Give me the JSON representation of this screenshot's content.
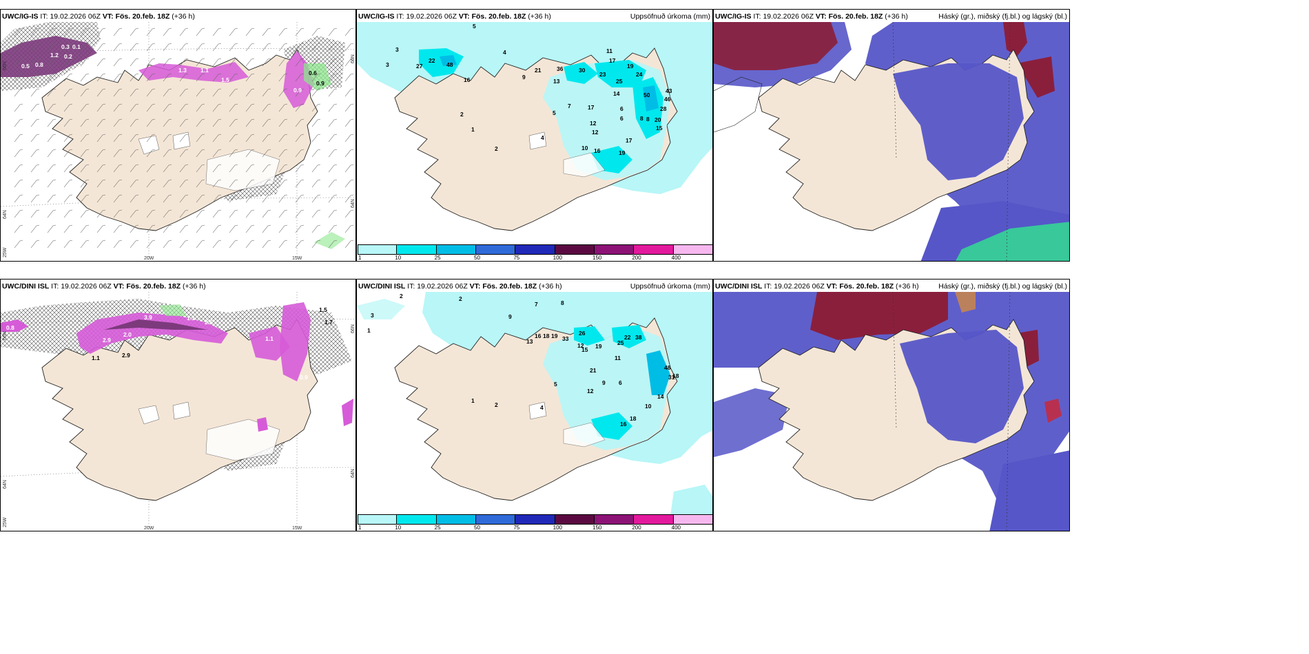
{
  "panels": {
    "p1": {
      "model": "UWC/IG-IS",
      "it_label": "IT:",
      "it_value": "19.02.2026 06Z",
      "vt_label": "VT:",
      "vt_value": "Fös. 20.feb. 18Z",
      "lead": "(+36 h)",
      "right_title": "",
      "values": [
        "0.3",
        "0.1",
        "1.2",
        "0.2",
        "0.5",
        "0.8",
        "1.3",
        "1.1",
        "0.9",
        "0.6",
        "0.9",
        "1.5"
      ],
      "coords": [
        "66N",
        "64N",
        "25W",
        "20W",
        "15W",
        "66N",
        "64N"
      ]
    },
    "p2": {
      "model": "UWC/IG-IS",
      "it_label": "IT:",
      "it_value": "19.02.2026 06Z",
      "vt_label": "VT:",
      "vt_value": "Fös. 20.feb. 18Z",
      "lead": "(+36 h)",
      "right_title": "Uppsöfnuð úrkoma (mm)",
      "values": [
        "5",
        "4",
        "3",
        "3",
        "27",
        "22",
        "48",
        "16",
        "2",
        "21",
        "36",
        "30",
        "23",
        "25",
        "24",
        "19",
        "17",
        "11",
        "13",
        "14",
        "17",
        "43",
        "50",
        "46",
        "28",
        "20",
        "15",
        "12",
        "17",
        "19",
        "16",
        "10",
        "8",
        "7",
        "6",
        "5",
        "4",
        "2",
        "1",
        "12",
        "9",
        "6",
        "8"
      ]
    },
    "p3": {
      "model": "UWC/IG-IS",
      "it_label": "IT:",
      "it_value": "19.02.2026 06Z",
      "vt_label": "VT:",
      "vt_value": "Fös. 20.feb. 18Z",
      "lead": "(+36 h)",
      "right_title": "Háský (gr.), miðský (fj.bl.) og lágský (bl.)"
    },
    "p4": {
      "model": "UWC/DINI ISL",
      "it_label": "IT:",
      "it_value": "19.02.2026 06Z",
      "vt_label": "VT:",
      "vt_value": "Fös. 20.feb. 18Z",
      "lead": "(+36 h)",
      "right_title": "",
      "values": [
        "3.9",
        "1.1",
        "2.6",
        "2.0",
        "2.9",
        "1.5",
        "1.7",
        "1.1",
        "2.9",
        "0.8",
        "1.1",
        "0.9"
      ],
      "coords": [
        "66N",
        "64N",
        "25W",
        "20W",
        "15W",
        "66N",
        "64N"
      ]
    },
    "p5": {
      "model": "UWC/DINI ISL",
      "it_label": "IT:",
      "it_value": "19.02.2026 06Z",
      "vt_label": "VT:",
      "vt_value": "Fös. 20.feb. 18Z",
      "lead": "(+36 h)",
      "right_title": "Uppsöfnuð úrkoma (mm)",
      "values": [
        "2",
        "3",
        "2",
        "1",
        "7",
        "8",
        "9",
        "16",
        "18",
        "19",
        "33",
        "26",
        "12",
        "19",
        "25",
        "22",
        "38",
        "11",
        "13",
        "21",
        "15",
        "31",
        "48",
        "18",
        "14",
        "10",
        "16",
        "18",
        "12",
        "9",
        "6",
        "5",
        "4",
        "2",
        "1"
      ]
    },
    "p6": {
      "model": "UWC/DINI ISL",
      "it_label": "IT:",
      "it_value": "19.02.2026 06Z",
      "vt_label": "VT:",
      "vt_value": "Fös. 20.feb. 18Z",
      "lead": "(+36 h)",
      "right_title": "Háský (gr.), miðský (fj.bl.) og lágský (bl.)"
    }
  },
  "colorbar": {
    "ticks": [
      "1",
      "10",
      "25",
      "50",
      "75",
      "100",
      "150",
      "200",
      "400"
    ],
    "colors": [
      "#b8f6f7",
      "#00e8ee",
      "#00bde6",
      "#2f6ad9",
      "#2028b8",
      "#5a0a40",
      "#8c1276",
      "#e2199c",
      "#f6b7ee"
    ]
  },
  "colors": {
    "land": "#f4e6d6",
    "precip_light": "#b8f6f7",
    "snow_pink": "#d65bd8",
    "high_cloud": "#8a1f3c",
    "mid_cloud": "#5656c8",
    "low_cloud_green": "#38c89a"
  }
}
